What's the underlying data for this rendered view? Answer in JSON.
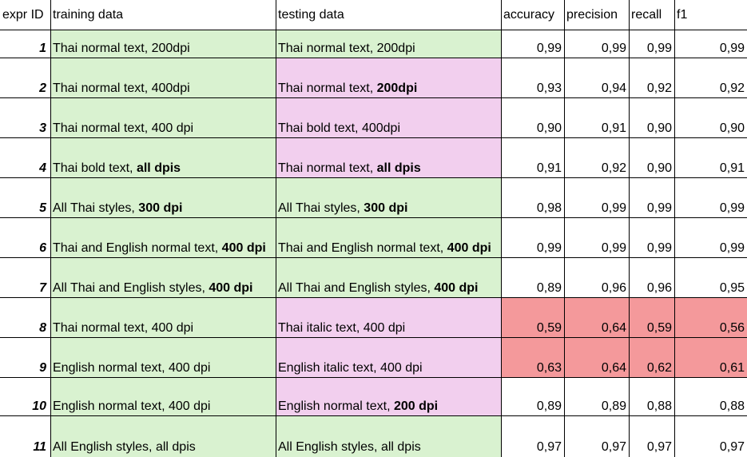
{
  "columns": [
    {
      "key": "id",
      "label": "expr ID"
    },
    {
      "key": "training",
      "label": "training data"
    },
    {
      "key": "testing",
      "label": "testing data"
    },
    {
      "key": "accuracy",
      "label": "accuracy"
    },
    {
      "key": "precision",
      "label": "precision"
    },
    {
      "key": "recall",
      "label": "recall"
    },
    {
      "key": "f1",
      "label": "f1"
    }
  ],
  "colors": {
    "training_fill": "#d9f2d0",
    "testing_changed_fill": "#f2cfee",
    "low_score_fill": "#f4999b",
    "grid_line": "#000000"
  },
  "rows": [
    {
      "id": "1",
      "training": {
        "text": "Thai normal text, 200dpi",
        "bold": "",
        "fill": "green"
      },
      "testing": {
        "text": "Thai normal text, 200dpi",
        "bold": "",
        "fill": "green"
      },
      "accuracy": "0,99",
      "precision": "0,99",
      "recall": "0,99",
      "f1": "0,99",
      "highlight": false
    },
    {
      "id": "2",
      "training": {
        "text": "Thai normal text, 400dpi",
        "bold": "",
        "fill": "green"
      },
      "testing": {
        "text": "Thai normal text, ",
        "bold": "200dpi",
        "fill": "pink"
      },
      "accuracy": "0,93",
      "precision": "0,94",
      "recall": "0,92",
      "f1": "0,92",
      "highlight": false
    },
    {
      "id": "3",
      "training": {
        "text": "Thai normal text, 400 dpi",
        "bold": "",
        "fill": "green"
      },
      "testing": {
        "text": "Thai bold text, 400dpi",
        "bold": "",
        "fill": "pink"
      },
      "accuracy": "0,90",
      "precision": "0,91",
      "recall": "0,90",
      "f1": "0,90",
      "highlight": false
    },
    {
      "id": "4",
      "training": {
        "text": "Thai bold text, ",
        "bold": "all dpis",
        "fill": "green"
      },
      "testing": {
        "text": "Thai normal text, ",
        "bold": "all dpis",
        "fill": "pink"
      },
      "accuracy": "0,91",
      "precision": "0,92",
      "recall": "0,90",
      "f1": "0,91",
      "highlight": false
    },
    {
      "id": "5",
      "training": {
        "text": "All Thai styles, ",
        "bold": "300 dpi",
        "fill": "green"
      },
      "testing": {
        "text": "All Thai styles, ",
        "bold": "300 dpi",
        "fill": "green"
      },
      "accuracy": "0,98",
      "precision": "0,99",
      "recall": "0,99",
      "f1": "0,99",
      "highlight": false
    },
    {
      "id": "6",
      "training": {
        "text": "Thai and English normal text, ",
        "bold": "400 dpi",
        "fill": "green"
      },
      "testing": {
        "text": "Thai and English normal text, ",
        "bold": "400 dpi",
        "fill": "green"
      },
      "accuracy": "0,99",
      "precision": "0,99",
      "recall": "0,99",
      "f1": "0,99",
      "highlight": false
    },
    {
      "id": "7",
      "training": {
        "text": "All Thai and English styles, ",
        "bold": "400 dpi",
        "fill": "green"
      },
      "testing": {
        "text": "All Thai and English styles, ",
        "bold": "400 dpi",
        "fill": "green"
      },
      "accuracy": "0,89",
      "precision": "0,96",
      "recall": "0,96",
      "f1": "0,95",
      "highlight": false
    },
    {
      "id": "8",
      "training": {
        "text": "Thai normal text, 400 dpi",
        "bold": "",
        "fill": "green"
      },
      "testing": {
        "text": "Thai italic text, 400 dpi",
        "bold": "",
        "fill": "pink"
      },
      "accuracy": "0,59",
      "precision": "0,64",
      "recall": "0,59",
      "f1": "0,56",
      "highlight": true
    },
    {
      "id": "9",
      "training": {
        "text": "English normal text, 400 dpi",
        "bold": "",
        "fill": "green"
      },
      "testing": {
        "text": "English italic text, 400 dpi",
        "bold": "",
        "fill": "pink"
      },
      "accuracy": "0,63",
      "precision": "0,64",
      "recall": "0,62",
      "f1": "0,61",
      "highlight": true
    },
    {
      "id": "10",
      "training": {
        "text": "English normal text, 400 dpi",
        "bold": "",
        "fill": "green"
      },
      "testing": {
        "text": "English normal text, ",
        "bold": "200 dpi",
        "fill": "pink"
      },
      "accuracy": "0,89",
      "precision": "0,89",
      "recall": "0,88",
      "f1": "0,88",
      "highlight": false
    },
    {
      "id": "11",
      "training": {
        "text": "All English styles, all dpis",
        "bold": "",
        "fill": "green"
      },
      "testing": {
        "text": "All English styles, all dpis",
        "bold": "",
        "fill": "green"
      },
      "accuracy": "0,97",
      "precision": "0,97",
      "recall": "0,97",
      "f1": "0,97",
      "highlight": false
    }
  ]
}
